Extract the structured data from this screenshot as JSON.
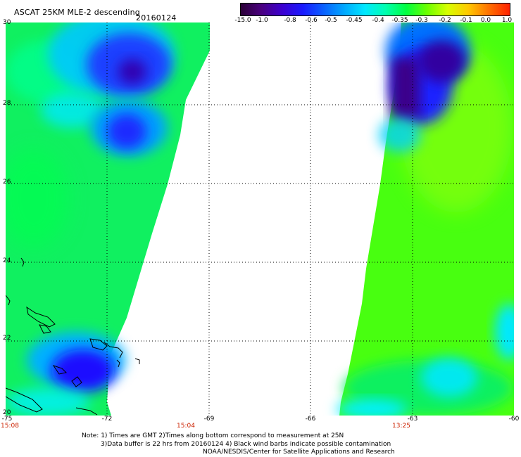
{
  "title": "ASCAT 25KM MLE-2 descending",
  "date": "20160124",
  "scale_labels": [
    "-15.0",
    "-1.0",
    "-0.8",
    "-0.6",
    "-0.5",
    "-0.45",
    "-0.4",
    "-0.35",
    "-0.3",
    "-0.2",
    "-0.1",
    "0.0",
    "1.0"
  ],
  "scale_colors": [
    "#2a0036",
    "#4a0080",
    "#3c00d0",
    "#1a1aff",
    "#0a60ff",
    "#00a8ff",
    "#00e8ff",
    "#00ffb0",
    "#00ff40",
    "#6cff00",
    "#d8ff00",
    "#ffc800",
    "#ff7000",
    "#ff2000"
  ],
  "latitudes": [
    "30",
    "28",
    "26",
    "24",
    "22",
    "20"
  ],
  "longitudes": [
    "-75",
    "-72",
    "-69",
    "-66",
    "-63",
    "-60"
  ],
  "times": [
    "15:08",
    "15:04",
    "13:25"
  ],
  "notes": {
    "line1": "Note: 1) Times are GMT 2)Times along bottom correspond to measurement at 25N",
    "line2": "3)Data buffer is 22 hrs from 20160124 4) Black wind barbs indicate possible contamination",
    "line3": "NOAA/NESDIS/Center for Satellite Applications and Research"
  }
}
